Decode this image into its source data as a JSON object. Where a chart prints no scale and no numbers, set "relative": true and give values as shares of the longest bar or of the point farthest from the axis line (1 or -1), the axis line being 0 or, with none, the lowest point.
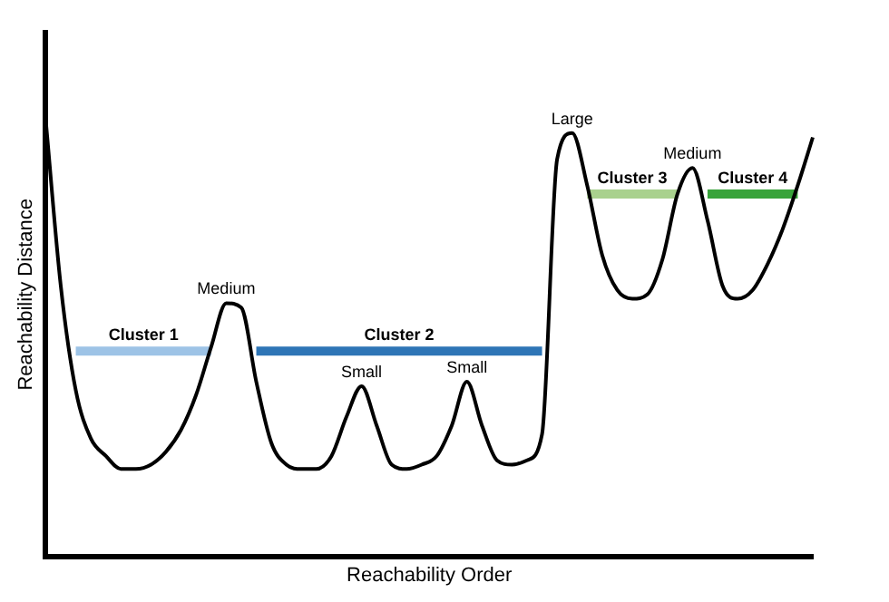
{
  "chart_data": {
    "type": "line",
    "relative": true,
    "xlabel": "Reachability Order",
    "ylabel": "Reachability Distance",
    "grid": false,
    "legend": false,
    "marker": "none",
    "line_style": "solid",
    "annotations": [
      "Medium",
      "Small",
      "Small",
      "Large",
      "Medium"
    ],
    "categories": [
      null,
      null,
      null,
      null,
      null,
      null,
      null,
      null,
      null,
      null,
      null,
      null,
      null,
      null,
      null,
      null,
      null,
      null,
      null,
      null,
      null,
      null,
      null,
      null,
      null,
      null,
      null,
      null,
      null,
      null,
      null,
      null,
      null,
      null,
      null,
      null,
      null,
      null,
      null,
      null,
      null,
      null,
      null,
      null,
      null,
      null,
      null,
      null,
      null,
      null,
      null,
      null
    ],
    "series": [
      {
        "color": "#000000",
        "values": [
          1,
          0.62,
          0.38,
          0.27,
          0.23,
          0.2,
          0.2,
          0.21,
          0.24,
          0.29,
          0.37,
          0.48,
          0.58,
          0.57,
          0.4,
          0.26,
          0.21,
          0.2,
          0.2,
          0.23,
          0.32,
          0.39,
          0.3,
          0.21,
          0.2,
          0.21,
          0.23,
          0.3,
          0.4,
          0.3,
          0.22,
          0.21,
          0.22,
          0.28,
          0.91,
          0.97,
          0.85,
          0.69,
          0.61,
          0.59,
          0.6,
          0.68,
          0.83,
          0.89,
          0.77,
          0.62,
          0.59,
          0.61,
          0.67,
          0.75,
          0.85,
          0.96
        ]
      },
      {
        "name": "Cluster 1",
        "color": "#9dc3e6",
        "values": [
          null,
          null,
          0.47,
          0.47,
          0.47,
          0.47,
          0.47,
          0.47,
          0.47,
          0.47,
          0.47,
          0.47,
          null,
          null,
          null,
          null,
          null,
          null,
          null,
          null,
          null,
          null,
          null,
          null,
          null,
          null,
          null,
          null,
          null,
          null,
          null,
          null,
          null,
          null,
          null,
          null,
          null,
          null,
          null,
          null,
          null,
          null,
          null,
          null,
          null,
          null,
          null,
          null,
          null,
          null,
          null,
          null
        ]
      },
      {
        "name": "Cluster 2",
        "color": "#2e75b6",
        "values": [
          null,
          null,
          null,
          null,
          null,
          null,
          null,
          null,
          null,
          null,
          null,
          null,
          null,
          null,
          0.47,
          0.47,
          0.47,
          0.47,
          0.47,
          0.47,
          0.47,
          0.47,
          0.47,
          0.47,
          0.47,
          0.47,
          0.47,
          0.47,
          0.47,
          0.47,
          0.47,
          0.47,
          0.47,
          0.47,
          null,
          null,
          null,
          null,
          null,
          null,
          null,
          null,
          null,
          null,
          null,
          null,
          null,
          null,
          null,
          null,
          null,
          null
        ]
      },
      {
        "name": "Cluster 3",
        "color": "#a9d18e",
        "values": [
          null,
          null,
          null,
          null,
          null,
          null,
          null,
          null,
          null,
          null,
          null,
          null,
          null,
          null,
          null,
          null,
          null,
          null,
          null,
          null,
          null,
          null,
          null,
          null,
          null,
          null,
          null,
          null,
          null,
          null,
          null,
          null,
          null,
          null,
          null,
          null,
          0.83,
          0.83,
          0.83,
          0.83,
          0.83,
          0.83,
          0.83,
          null,
          null,
          null,
          null,
          null,
          null,
          null,
          null,
          null
        ]
      },
      {
        "name": "Cluster 4",
        "color": "#38a33a",
        "values": [
          null,
          null,
          null,
          null,
          null,
          null,
          null,
          null,
          null,
          null,
          null,
          null,
          null,
          null,
          null,
          null,
          null,
          null,
          null,
          null,
          null,
          null,
          null,
          null,
          null,
          null,
          null,
          null,
          null,
          null,
          null,
          null,
          null,
          null,
          null,
          null,
          null,
          null,
          null,
          null,
          null,
          null,
          null,
          null,
          0.83,
          0.83,
          0.83,
          0.83,
          0.83,
          0.83,
          0.83,
          null
        ]
      }
    ]
  }
}
